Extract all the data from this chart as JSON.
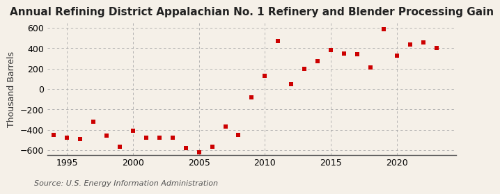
{
  "title": "Annual Refining District Appalachian No. 1 Refinery and Blender Processing Gain",
  "ylabel": "Thousand Barrels",
  "source": "Source: U.S. Energy Information Administration",
  "years": [
    1994,
    1995,
    1996,
    1997,
    1998,
    1999,
    2000,
    2001,
    2002,
    2003,
    2004,
    2005,
    2006,
    2007,
    2008,
    2009,
    2010,
    2011,
    2012,
    2013,
    2014,
    2015,
    2016,
    2017,
    2018,
    2019,
    2020,
    2021,
    2022,
    2023
  ],
  "values": [
    -450,
    -480,
    -490,
    -320,
    -460,
    -570,
    -410,
    -480,
    -480,
    -480,
    -580,
    -620,
    -570,
    -370,
    -450,
    -80,
    130,
    470,
    50,
    200,
    270,
    380,
    350,
    340,
    210,
    590,
    330,
    440,
    460,
    400
  ],
  "marker_color": "#cc0000",
  "marker_size": 25,
  "background_color": "#f5f0e8",
  "grid_color": "#aaaaaa",
  "xlim": [
    1993.5,
    2024.5
  ],
  "ylim": [
    -650,
    650
  ],
  "yticks": [
    -600,
    -400,
    -200,
    0,
    200,
    400,
    600
  ],
  "xticks": [
    1995,
    2000,
    2005,
    2010,
    2015,
    2020
  ],
  "title_fontsize": 11,
  "label_fontsize": 9,
  "source_fontsize": 8
}
